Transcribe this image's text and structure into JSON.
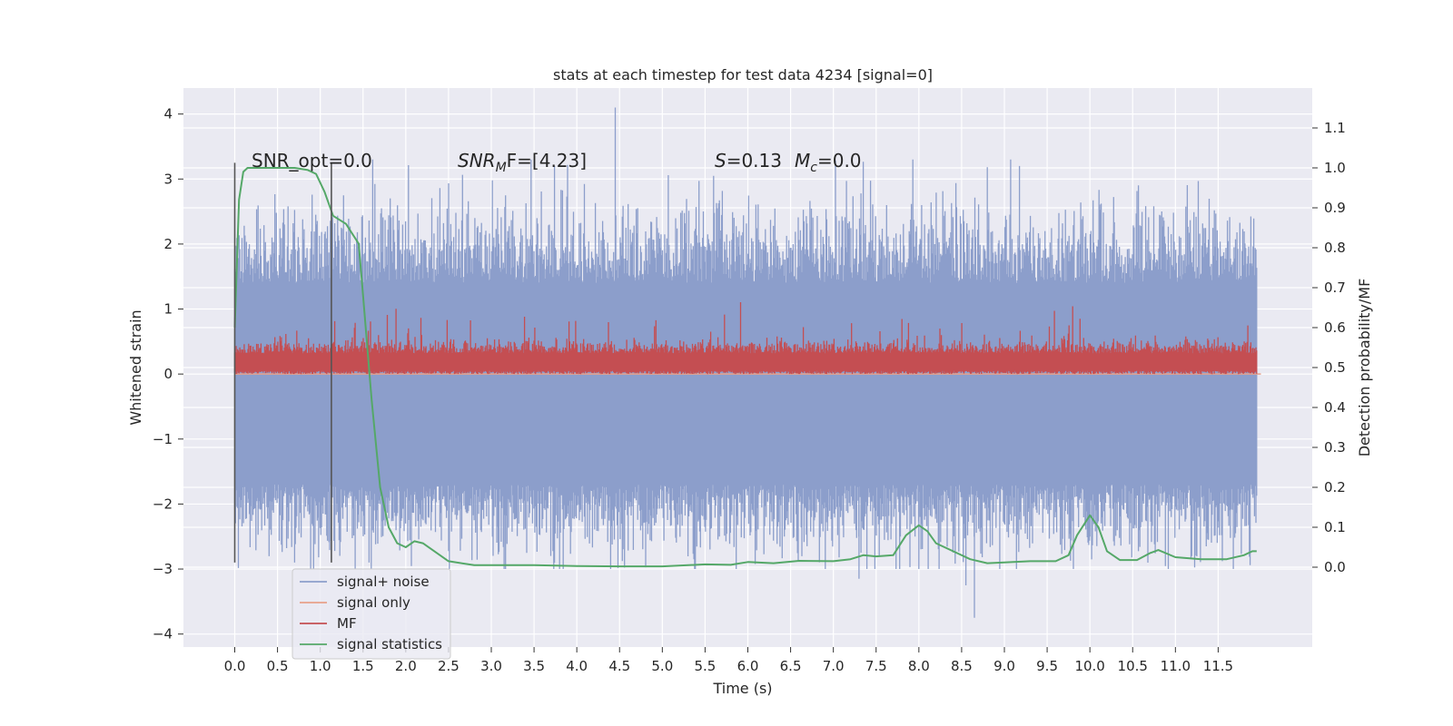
{
  "chart_data": {
    "type": "line",
    "title": "stats at each timestep for test data 4234 [signal=0]",
    "xlabel": "Time (s)",
    "ylabel": "Whitened strain",
    "ylabel_right": "Detection probability/MF",
    "xlim": [
      -0.6,
      12.6
    ],
    "ylim": [
      -4.2,
      4.4
    ],
    "ylim_right": [
      -0.2,
      1.2
    ],
    "x_ticks": [
      "0.0",
      "0.5",
      "1.0",
      "1.5",
      "2.0",
      "2.5",
      "3.0",
      "3.5",
      "4.0",
      "4.5",
      "5.0",
      "5.5",
      "6.0",
      "6.5",
      "7.0",
      "7.5",
      "8.0",
      "8.5",
      "9.0",
      "9.5",
      "10.0",
      "10.5",
      "11.0",
      "11.5"
    ],
    "y_ticks": [
      "4",
      "3",
      "2",
      "1",
      "0",
      "−1",
      "−2",
      "−3",
      "−4"
    ],
    "y_ticks_right": [
      "1.1",
      "1.0",
      "0.9",
      "0.8",
      "0.7",
      "0.6",
      "0.5",
      "0.4",
      "0.3",
      "0.2",
      "0.1",
      "0.0"
    ],
    "grid": true,
    "legend_position": "lower-left",
    "annotations": {
      "snr_opt": "SNR_opt=0.0",
      "snr_mf_prefix": "SNR",
      "snr_mf_sub": "M",
      "snr_mf_suffix": "F=[4.23]",
      "s_label": "S",
      "s_value": "=0.13",
      "mc_label": "M",
      "mc_sub": "c",
      "mc_value": "=0.0"
    },
    "vertical_markers_x": [
      0.0,
      1.13
    ],
    "series": [
      {
        "name": "signal+ noise",
        "color": "#8c9ecb",
        "axis": "left",
        "description_values": {
          "typical_high": 1.4,
          "typical_low": -1.7,
          "peak_max": 4.1,
          "peak_min": -3.8,
          "peaks": [
            [
              4.45,
              4.1
            ],
            [
              8.65,
              -3.75
            ],
            [
              8.55,
              -3.25
            ],
            [
              7.3,
              -3.15
            ],
            [
              0.7,
              -2.9
            ],
            [
              10.0,
              -2.5
            ],
            [
              8.0,
              -3.0
            ]
          ]
        }
      },
      {
        "name": "signal only",
        "color": "#e8a08a",
        "axis": "left",
        "x": [
          0.0,
          12.0
        ],
        "y": [
          0.0,
          0.0
        ]
      },
      {
        "name": "MF",
        "color": "#c44e52",
        "axis": "left",
        "description_values": {
          "baseline": 0.0,
          "typical_high": 0.45,
          "peak_max": 1.0
        }
      },
      {
        "name": "signal statistics",
        "color": "#55a868",
        "axis": "right",
        "x": [
          0.0,
          0.05,
          0.1,
          0.15,
          0.2,
          0.3,
          0.5,
          0.7,
          0.85,
          0.95,
          1.05,
          1.15,
          1.3,
          1.45,
          1.5,
          1.6,
          1.7,
          1.8,
          1.9,
          2.0,
          2.1,
          2.2,
          2.3,
          2.5,
          2.8,
          3.0,
          3.5,
          4.0,
          4.5,
          5.0,
          5.5,
          5.8,
          6.0,
          6.3,
          6.6,
          7.0,
          7.2,
          7.35,
          7.5,
          7.7,
          7.85,
          8.0,
          8.1,
          8.2,
          8.4,
          8.6,
          8.8,
          9.0,
          9.3,
          9.6,
          9.75,
          9.85,
          10.0,
          10.1,
          10.2,
          10.35,
          10.55,
          10.7,
          10.8,
          11.0,
          11.3,
          11.6,
          11.8,
          11.9,
          11.95
        ],
        "y": [
          0.6,
          0.92,
          0.99,
          1.0,
          1.0,
          1.0,
          1.0,
          1.0,
          0.995,
          0.985,
          0.94,
          0.88,
          0.86,
          0.81,
          0.68,
          0.42,
          0.2,
          0.1,
          0.06,
          0.05,
          0.065,
          0.06,
          0.045,
          0.015,
          0.005,
          0.005,
          0.005,
          0.003,
          0.002,
          0.002,
          0.007,
          0.006,
          0.013,
          0.01,
          0.016,
          0.015,
          0.02,
          0.03,
          0.027,
          0.03,
          0.08,
          0.105,
          0.09,
          0.06,
          0.04,
          0.02,
          0.01,
          0.012,
          0.015,
          0.015,
          0.03,
          0.08,
          0.13,
          0.1,
          0.04,
          0.018,
          0.018,
          0.035,
          0.043,
          0.025,
          0.02,
          0.02,
          0.03,
          0.04,
          0.04
        ]
      }
    ]
  }
}
